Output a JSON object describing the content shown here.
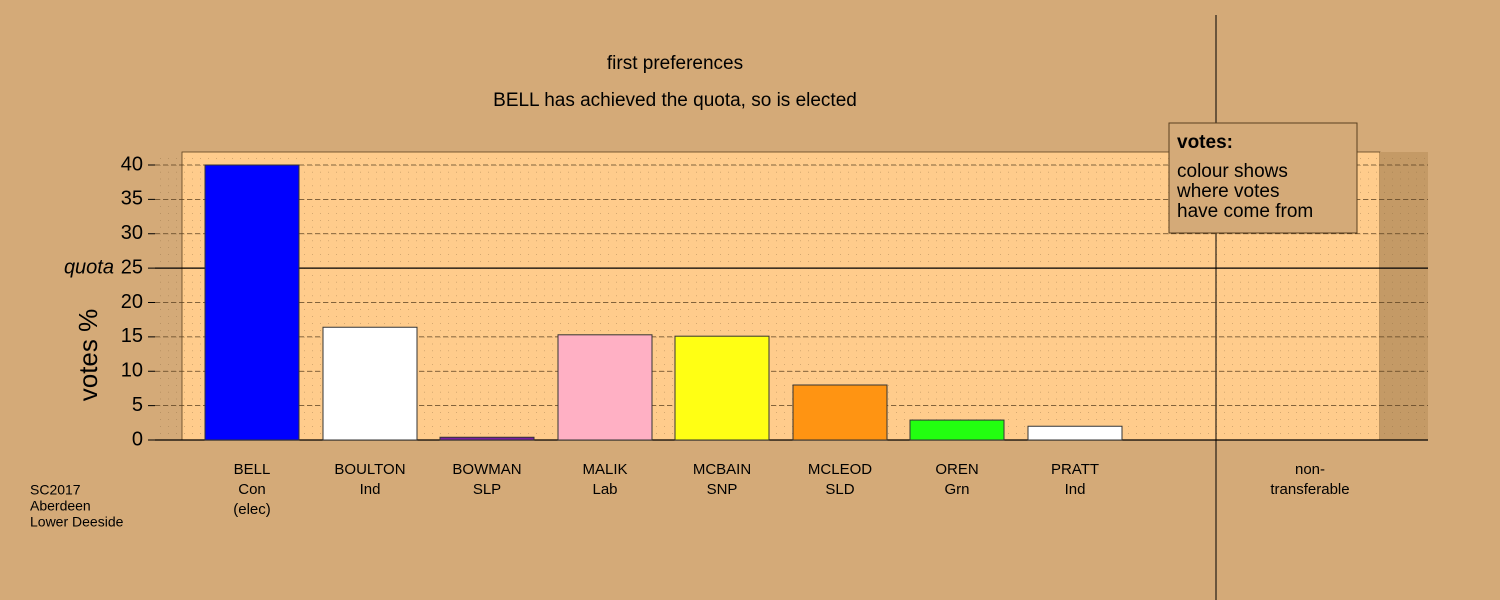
{
  "chart_data": {
    "type": "bar",
    "title": "first preferences",
    "subtitle": "BELL has achieved the quota, so is elected",
    "y_label": "votes %",
    "quota_label": "quota",
    "quota": 25,
    "categories": [
      [
        "BELL",
        "Con",
        "(elec)"
      ],
      [
        "BOULTON",
        "Ind"
      ],
      [
        "BOWMAN",
        "SLP"
      ],
      [
        "MALIK",
        "Lab"
      ],
      [
        "MCBAIN",
        "SNP"
      ],
      [
        "MCLEOD",
        "SLD"
      ],
      [
        "OREN",
        "Grn"
      ],
      [
        "PRATT",
        "Ind"
      ],
      [
        "non-",
        "transferable"
      ]
    ],
    "values": [
      40,
      16.4,
      0.4,
      15.3,
      15.1,
      8.0,
      2.9,
      2.0,
      null
    ],
    "colors": [
      "#0000ff",
      "#ffffff",
      "#7a1fa0",
      "#ffb0c4",
      "#ffff14",
      "#ff9412",
      "#22ff10",
      "#ffffff",
      "#ffffff"
    ],
    "ylim": [
      0,
      40
    ],
    "yticks": [
      0,
      5,
      10,
      15,
      20,
      25,
      30,
      35,
      40
    ],
    "grid": true,
    "legend": {
      "title": "votes:",
      "lines": [
        "colour shows",
        "where votes",
        "have come from"
      ]
    },
    "source": [
      "SC2017",
      "Aberdeen",
      "Lower Deeside"
    ]
  }
}
